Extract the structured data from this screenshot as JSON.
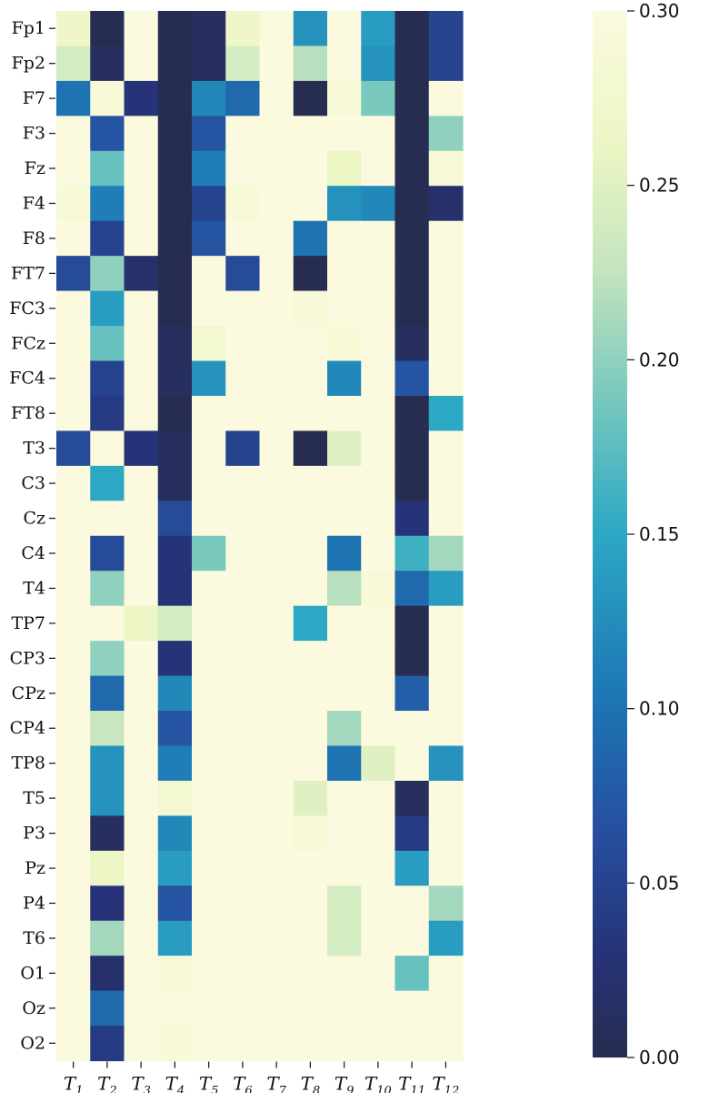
{
  "chart_data": {
    "type": "heatmap",
    "rows": [
      "Fp1",
      "Fp2",
      "F7",
      "F3",
      "Fz",
      "F4",
      "F8",
      "FT7",
      "FC3",
      "FCz",
      "FC4",
      "FT8",
      "T3",
      "C3",
      "Cz",
      "C4",
      "T4",
      "TP7",
      "CP3",
      "CPz",
      "CP4",
      "TP8",
      "T5",
      "P3",
      "Pz",
      "P4",
      "T6",
      "O1",
      "Oz",
      "O2"
    ],
    "columns": [
      {
        "base": "T",
        "sub": "1"
      },
      {
        "base": "T",
        "sub": "2"
      },
      {
        "base": "T",
        "sub": "3"
      },
      {
        "base": "T",
        "sub": "4"
      },
      {
        "base": "T",
        "sub": "5"
      },
      {
        "base": "T",
        "sub": "6"
      },
      {
        "base": "T",
        "sub": "7"
      },
      {
        "base": "T",
        "sub": "8"
      },
      {
        "base": "T",
        "sub": "9"
      },
      {
        "base": "T",
        "sub": "10"
      },
      {
        "base": "T",
        "sub": "11"
      },
      {
        "base": "T",
        "sub": "12"
      }
    ],
    "values": [
      [
        0.27,
        0.0,
        0.3,
        0.0,
        0.01,
        0.27,
        0.3,
        0.13,
        0.3,
        0.14,
        0.0,
        0.05
      ],
      [
        0.24,
        0.01,
        0.3,
        0.0,
        0.01,
        0.24,
        0.3,
        0.22,
        0.3,
        0.13,
        0.0,
        0.05
      ],
      [
        0.1,
        0.29,
        0.03,
        0.0,
        0.12,
        0.09,
        0.3,
        0.0,
        0.29,
        0.19,
        0.0,
        0.3
      ],
      [
        0.3,
        0.07,
        0.3,
        0.0,
        0.07,
        0.3,
        0.3,
        0.3,
        0.3,
        0.3,
        0.0,
        0.2
      ],
      [
        0.3,
        0.18,
        0.3,
        0.0,
        0.11,
        0.3,
        0.3,
        0.3,
        0.26,
        0.3,
        0.0,
        0.29
      ],
      [
        0.29,
        0.11,
        0.3,
        0.0,
        0.05,
        0.29,
        0.3,
        0.3,
        0.13,
        0.12,
        0.0,
        0.02
      ],
      [
        0.3,
        0.05,
        0.3,
        0.0,
        0.07,
        0.3,
        0.3,
        0.1,
        0.3,
        0.3,
        0.0,
        0.3
      ],
      [
        0.06,
        0.2,
        0.02,
        0.0,
        0.3,
        0.06,
        0.3,
        0.0,
        0.3,
        0.3,
        0.0,
        0.3
      ],
      [
        0.3,
        0.14,
        0.3,
        0.0,
        0.3,
        0.3,
        0.3,
        0.29,
        0.3,
        0.3,
        0.0,
        0.3
      ],
      [
        0.3,
        0.18,
        0.3,
        0.01,
        0.28,
        0.3,
        0.3,
        0.3,
        0.29,
        0.3,
        0.01,
        0.3
      ],
      [
        0.3,
        0.05,
        0.3,
        0.01,
        0.13,
        0.3,
        0.3,
        0.3,
        0.12,
        0.3,
        0.07,
        0.3
      ],
      [
        0.3,
        0.04,
        0.3,
        0.0,
        0.3,
        0.3,
        0.3,
        0.3,
        0.3,
        0.3,
        0.0,
        0.15
      ],
      [
        0.06,
        0.3,
        0.03,
        0.01,
        0.3,
        0.05,
        0.3,
        0.0,
        0.25,
        0.3,
        0.0,
        0.3
      ],
      [
        0.3,
        0.15,
        0.3,
        0.01,
        0.3,
        0.3,
        0.3,
        0.3,
        0.3,
        0.3,
        0.0,
        0.3
      ],
      [
        0.3,
        0.3,
        0.3,
        0.06,
        0.3,
        0.3,
        0.3,
        0.3,
        0.3,
        0.3,
        0.03,
        0.3
      ],
      [
        0.3,
        0.06,
        0.3,
        0.03,
        0.19,
        0.3,
        0.3,
        0.3,
        0.1,
        0.3,
        0.16,
        0.21
      ],
      [
        0.3,
        0.2,
        0.3,
        0.03,
        0.3,
        0.3,
        0.3,
        0.3,
        0.22,
        0.29,
        0.09,
        0.14
      ],
      [
        0.3,
        0.3,
        0.26,
        0.24,
        0.3,
        0.3,
        0.3,
        0.15,
        0.3,
        0.3,
        0.0,
        0.3
      ],
      [
        0.3,
        0.2,
        0.3,
        0.03,
        0.3,
        0.3,
        0.3,
        0.3,
        0.3,
        0.3,
        0.0,
        0.3
      ],
      [
        0.3,
        0.09,
        0.3,
        0.12,
        0.3,
        0.3,
        0.3,
        0.3,
        0.3,
        0.3,
        0.08,
        0.3
      ],
      [
        0.3,
        0.23,
        0.3,
        0.07,
        0.3,
        0.3,
        0.3,
        0.3,
        0.21,
        0.3,
        0.3,
        0.3
      ],
      [
        0.3,
        0.13,
        0.3,
        0.11,
        0.3,
        0.3,
        0.3,
        0.3,
        0.1,
        0.25,
        0.3,
        0.13
      ],
      [
        0.3,
        0.13,
        0.3,
        0.28,
        0.3,
        0.3,
        0.3,
        0.25,
        0.3,
        0.3,
        0.01,
        0.3
      ],
      [
        0.3,
        0.01,
        0.3,
        0.12,
        0.3,
        0.3,
        0.3,
        0.29,
        0.3,
        0.3,
        0.04,
        0.3
      ],
      [
        0.3,
        0.26,
        0.3,
        0.14,
        0.3,
        0.3,
        0.3,
        0.3,
        0.3,
        0.3,
        0.14,
        0.3
      ],
      [
        0.3,
        0.03,
        0.3,
        0.07,
        0.3,
        0.3,
        0.3,
        0.3,
        0.24,
        0.3,
        0.3,
        0.21
      ],
      [
        0.3,
        0.21,
        0.3,
        0.14,
        0.3,
        0.3,
        0.3,
        0.3,
        0.24,
        0.3,
        0.3,
        0.14
      ],
      [
        0.3,
        0.02,
        0.3,
        0.29,
        0.3,
        0.3,
        0.3,
        0.3,
        0.3,
        0.3,
        0.18,
        0.3
      ],
      [
        0.3,
        0.09,
        0.3,
        0.3,
        0.3,
        0.3,
        0.3,
        0.3,
        0.3,
        0.3,
        0.3,
        0.3
      ],
      [
        0.3,
        0.04,
        0.3,
        0.29,
        0.3,
        0.3,
        0.3,
        0.3,
        0.3,
        0.3,
        0.3,
        0.3
      ]
    ],
    "vmin": 0.0,
    "vmax": 0.3,
    "colormap": "YlGnBu_r",
    "colorbar_ticks": [
      "0.00",
      "0.05",
      "0.10",
      "0.15",
      "0.20",
      "0.25",
      "0.30"
    ],
    "grid": false,
    "legend": "colorbar right"
  }
}
